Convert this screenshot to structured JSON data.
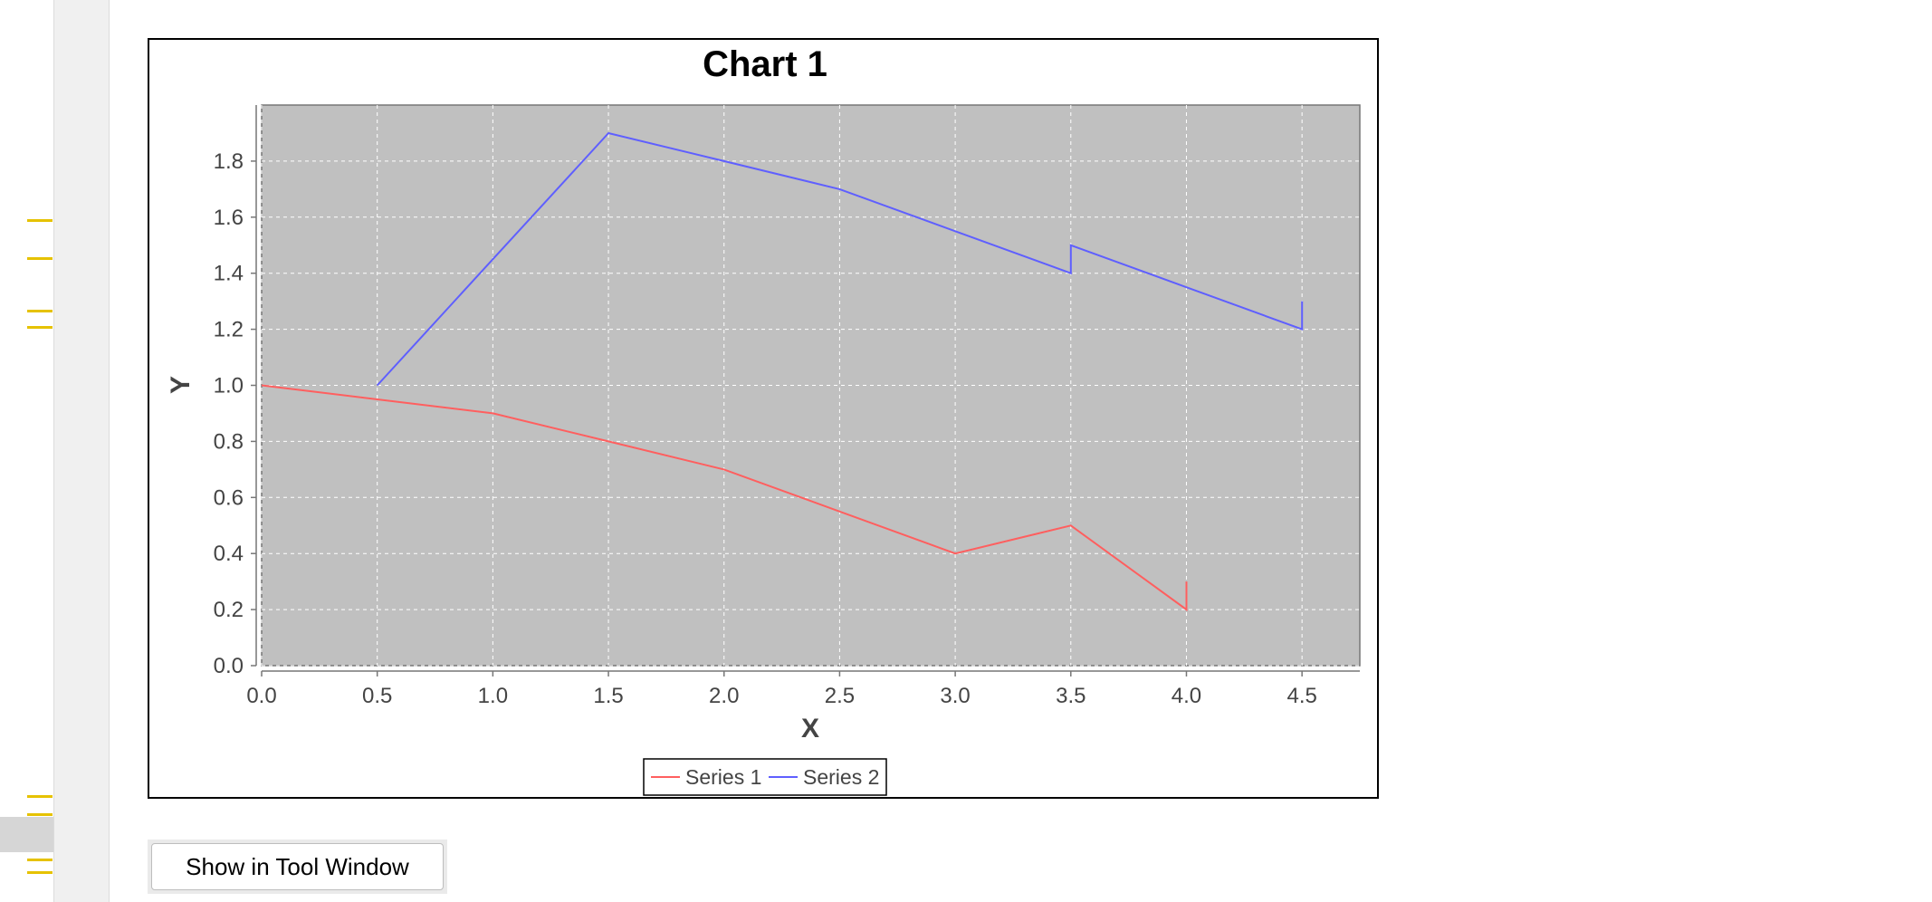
{
  "colors": {
    "plot_background": "#c0c0c0",
    "gridline": "#ffffff",
    "series_1": "#ff5f5f",
    "series_2": "#5f5fff",
    "gutter_marker": "#e6c200"
  },
  "chart_data": {
    "type": "line",
    "title": "Chart 1",
    "xlabel": "X",
    "ylabel": "Y",
    "xlim": [
      0.0,
      4.75
    ],
    "ylim": [
      0.0,
      2.0
    ],
    "x_ticks": [
      "0.0",
      "0.5",
      "1.0",
      "1.5",
      "2.0",
      "2.5",
      "3.0",
      "3.5",
      "4.0",
      "4.5"
    ],
    "y_ticks": [
      "0.0",
      "0.2",
      "0.4",
      "0.6",
      "0.8",
      "1.0",
      "1.2",
      "1.4",
      "1.6",
      "1.8"
    ],
    "grid": true,
    "legend_position": "bottom",
    "series": [
      {
        "name": "Series 1",
        "color": "#ff5f5f",
        "points": [
          [
            0.0,
            1.0
          ],
          [
            0.5,
            0.95
          ],
          [
            1.0,
            0.9
          ],
          [
            1.5,
            0.8
          ],
          [
            2.0,
            0.7
          ],
          [
            2.5,
            0.55
          ],
          [
            3.0,
            0.4
          ],
          [
            3.5,
            0.5
          ],
          [
            4.0,
            0.2
          ],
          [
            4.0,
            0.3
          ]
        ]
      },
      {
        "name": "Series 2",
        "color": "#5f5fff",
        "points": [
          [
            0.5,
            1.0
          ],
          [
            1.0,
            1.45
          ],
          [
            1.5,
            1.9
          ],
          [
            2.0,
            1.8
          ],
          [
            2.5,
            1.7
          ],
          [
            3.0,
            1.55
          ],
          [
            3.5,
            1.4
          ],
          [
            3.5,
            1.5
          ],
          [
            4.0,
            1.35
          ],
          [
            4.5,
            1.2
          ],
          [
            4.5,
            1.3
          ]
        ]
      }
    ]
  },
  "actions": {
    "show_tool_window_label": "Show in Tool Window"
  }
}
